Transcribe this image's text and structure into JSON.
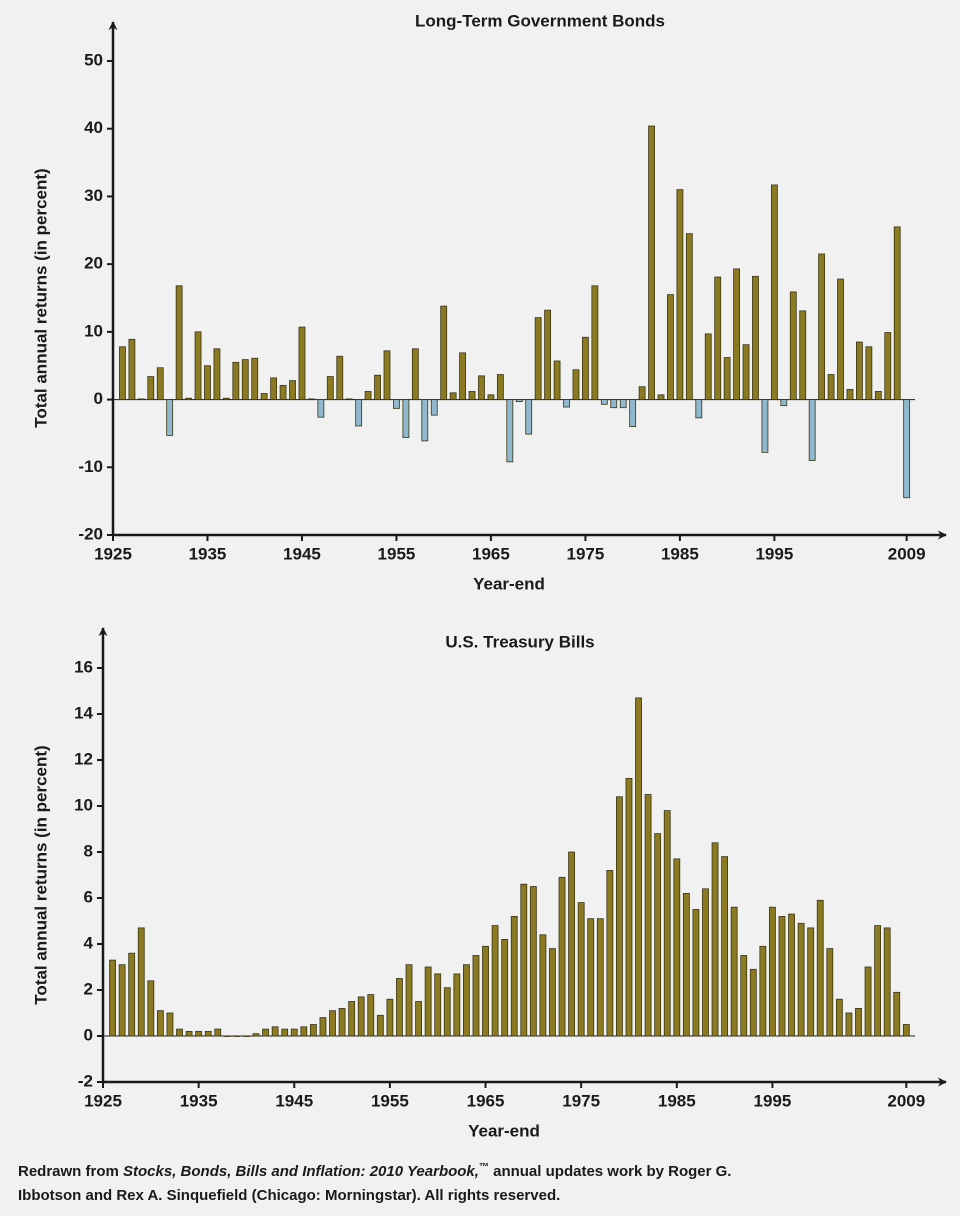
{
  "chart_data": [
    {
      "type": "bar",
      "title": "Long-Term Government Bonds",
      "x_label": "Year-end",
      "y_label": "Total annual returns (in percent)",
      "x": [
        1926,
        1927,
        1928,
        1929,
        1930,
        1931,
        1932,
        1933,
        1934,
        1935,
        1936,
        1937,
        1938,
        1939,
        1940,
        1941,
        1942,
        1943,
        1944,
        1945,
        1946,
        1947,
        1948,
        1949,
        1950,
        1951,
        1952,
        1953,
        1954,
        1955,
        1956,
        1957,
        1958,
        1959,
        1960,
        1961,
        1962,
        1963,
        1964,
        1965,
        1966,
        1967,
        1968,
        1969,
        1970,
        1971,
        1972,
        1973,
        1974,
        1975,
        1976,
        1977,
        1978,
        1979,
        1980,
        1981,
        1982,
        1983,
        1984,
        1985,
        1986,
        1987,
        1988,
        1989,
        1990,
        1991,
        1992,
        1993,
        1994,
        1995,
        1996,
        1997,
        1998,
        1999,
        2000,
        2001,
        2002,
        2003,
        2004,
        2005,
        2006,
        2007,
        2008,
        2009
      ],
      "values": [
        7.8,
        8.9,
        0.1,
        3.4,
        4.7,
        -5.3,
        16.8,
        0.2,
        10.0,
        5.0,
        7.5,
        0.2,
        5.5,
        5.9,
        6.1,
        0.9,
        3.2,
        2.1,
        2.8,
        10.7,
        0.1,
        -2.6,
        3.4,
        6.4,
        0.1,
        -3.9,
        1.2,
        3.6,
        7.2,
        -1.3,
        -5.6,
        7.5,
        -6.1,
        -2.3,
        13.8,
        1.0,
        6.9,
        1.2,
        3.5,
        0.7,
        3.7,
        -9.2,
        -0.3,
        -5.1,
        12.1,
        13.2,
        5.7,
        -1.1,
        4.4,
        9.2,
        16.8,
        -0.7,
        -1.2,
        -1.2,
        -4.0,
        1.9,
        40.4,
        0.7,
        15.5,
        31.0,
        24.5,
        -2.7,
        9.7,
        18.1,
        6.2,
        19.3,
        8.1,
        18.2,
        -7.8,
        31.7,
        -0.9,
        15.9,
        13.1,
        -9.0,
        21.5,
        3.7,
        17.8,
        1.5,
        8.5,
        7.8,
        1.2,
        9.9,
        25.5,
        -14.5
      ],
      "color": "#8c7a22",
      "negative_color": "#8fb8cc",
      "xlim": [
        1925,
        2012
      ],
      "xticks": [
        1925,
        1935,
        1945,
        1955,
        1965,
        1975,
        1985,
        1995,
        2009
      ],
      "ylim": [
        -20,
        50
      ],
      "yticks": [
        -20,
        -10,
        0,
        10,
        20,
        30,
        40,
        50
      ],
      "grid": false
    },
    {
      "type": "bar",
      "title": "U.S. Treasury Bills",
      "x_label": "Year-end",
      "y_label": "Total annual returns (in percent)",
      "x": [
        1926,
        1927,
        1928,
        1929,
        1930,
        1931,
        1932,
        1933,
        1934,
        1935,
        1936,
        1937,
        1938,
        1939,
        1940,
        1941,
        1942,
        1943,
        1944,
        1945,
        1946,
        1947,
        1948,
        1949,
        1950,
        1951,
        1952,
        1953,
        1954,
        1955,
        1956,
        1957,
        1958,
        1959,
        1960,
        1961,
        1962,
        1963,
        1964,
        1965,
        1966,
        1967,
        1968,
        1969,
        1970,
        1971,
        1972,
        1973,
        1974,
        1975,
        1976,
        1977,
        1978,
        1979,
        1980,
        1981,
        1982,
        1983,
        1984,
        1985,
        1986,
        1987,
        1988,
        1989,
        1990,
        1991,
        1992,
        1993,
        1994,
        1995,
        1996,
        1997,
        1998,
        1999,
        2000,
        2001,
        2002,
        2003,
        2004,
        2005,
        2006,
        2007,
        2008,
        2009
      ],
      "values": [
        3.3,
        3.1,
        3.6,
        4.7,
        2.4,
        1.1,
        1.0,
        0.3,
        0.2,
        0.2,
        0.2,
        0.3,
        0.0,
        0.0,
        0.0,
        0.1,
        0.3,
        0.4,
        0.3,
        0.3,
        0.4,
        0.5,
        0.8,
        1.1,
        1.2,
        1.5,
        1.7,
        1.8,
        0.9,
        1.6,
        2.5,
        3.1,
        1.5,
        3.0,
        2.7,
        2.1,
        2.7,
        3.1,
        3.5,
        3.9,
        4.8,
        4.2,
        5.2,
        6.6,
        6.5,
        4.4,
        3.8,
        6.9,
        8.0,
        5.8,
        5.1,
        5.1,
        7.2,
        10.4,
        11.2,
        14.7,
        10.5,
        8.8,
        9.8,
        7.7,
        6.2,
        5.5,
        6.4,
        8.4,
        7.8,
        5.6,
        3.5,
        2.9,
        3.9,
        5.6,
        5.2,
        5.3,
        4.9,
        4.7,
        5.9,
        3.8,
        1.6,
        1.0,
        1.2,
        3.0,
        4.8,
        4.7,
        1.9,
        0.5
      ],
      "color": "#8c7a22",
      "negative_color": "#8fb8cc",
      "xlim": [
        1925,
        2012
      ],
      "xticks": [
        1925,
        1935,
        1945,
        1955,
        1965,
        1975,
        1985,
        1995,
        2009
      ],
      "ylim": [
        -2,
        16
      ],
      "yticks": [
        -2,
        0,
        2,
        4,
        6,
        8,
        10,
        12,
        14,
        16
      ],
      "grid": false
    }
  ],
  "source": {
    "lead": "Redrawn from ",
    "book": "Stocks, Bonds, Bills and Inflation: 2010 Yearbook,",
    "mark": "™",
    "rest1": " annual updates work by Roger G.",
    "rest2": "Ibbotson and Rex A. Sinquefield (Chicago: Morningstar). All rights reserved."
  }
}
